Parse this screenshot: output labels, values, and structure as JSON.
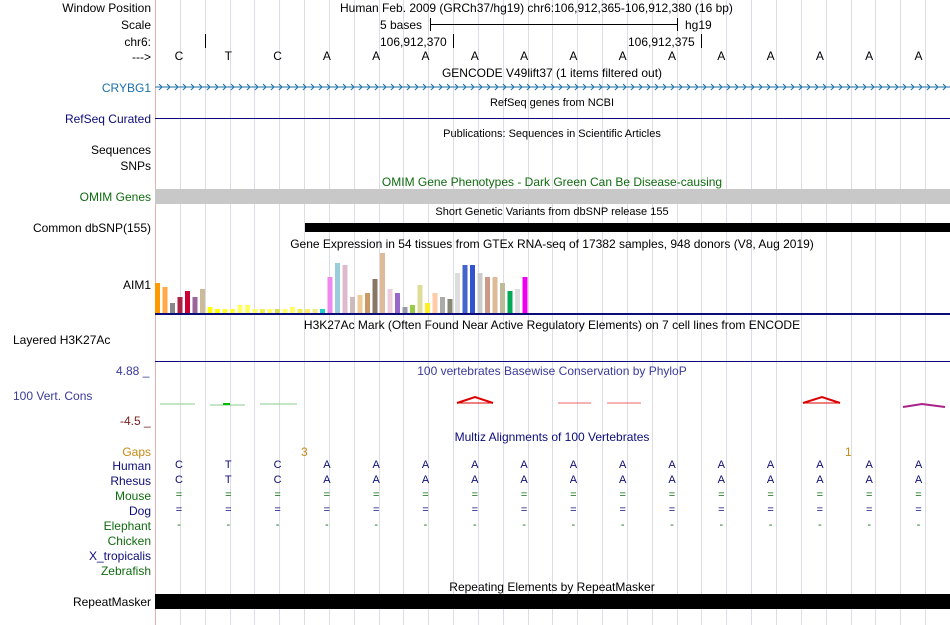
{
  "header": {
    "window_position_label": "Window Position",
    "scale_label": "Scale",
    "chrom_label": "chr6:",
    "arrow_label": "--->",
    "assembly_text": "Human Feb. 2009 (GRCh37/hg19)   chr6:106,912,365-106,912,380 (16 bp)",
    "scale_text": "5 bases",
    "scale_assembly": "hg19",
    "coord_1": "106,912,370",
    "coord_2": "106,912,375"
  },
  "sequence": [
    "C",
    "T",
    "C",
    "A",
    "A",
    "A",
    "A",
    "A",
    "A",
    "A",
    "A",
    "A",
    "A",
    "A",
    "A",
    "A"
  ],
  "tracks": {
    "gencode": {
      "title": "GENCODE V49lift37 (1 items filtered out)",
      "gene": "CRYBG1",
      "color": "#1a6fa8"
    },
    "refseq": {
      "title": "RefSeq genes from NCBI",
      "label": "RefSeq Curated",
      "color": "#0c0c78"
    },
    "publications": {
      "title": "Publications: Sequences in Scientific Articles",
      "label1": "Sequences",
      "label2": "SNPs"
    },
    "omim": {
      "title": "OMIM Gene Phenotypes - Dark Green Can Be Disease-causing",
      "label": "OMIM Genes",
      "color": "#0f6b0f"
    },
    "dbsnp": {
      "title": "Short Genetic Variants from dbSNP release 155",
      "label": "Common dbSNP(155)"
    },
    "gtex": {
      "title": "Gene Expression in 54 tissues from GTEx RNA-seq of 17382 samples, 948 donors (V8, Aug 2019)",
      "label": "AIM1"
    },
    "h3k27ac": {
      "title": "H3K27Ac Mark (Often Found Near Active Regulatory Elements) on 7 cell lines from ENCODE",
      "label": "Layered H3K27Ac"
    },
    "phylop": {
      "title": "100 vertebrates Basewise Conservation by PhyloP",
      "label": "100 Vert. Cons",
      "max": "4.88 _",
      "min": "-4.5 _",
      "color": "#3a3a9a"
    },
    "multiz": {
      "title": "Multiz Alignments of 100 Vertebrates",
      "gaps_label": "Gaps",
      "gap_num_1": "3",
      "gap_num_2": "1",
      "species": [
        {
          "name": "Human",
          "color": "#0c0c78"
        },
        {
          "name": "Rhesus",
          "color": "#0c0c78"
        },
        {
          "name": "Mouse",
          "color": "#0f6b0f"
        },
        {
          "name": "Dog",
          "color": "#0c0c78"
        },
        {
          "name": "Elephant",
          "color": "#0f6b0f"
        },
        {
          "name": "Chicken",
          "color": "#0f6b0f"
        },
        {
          "name": "X_tropicalis",
          "color": "#0c0c78"
        },
        {
          "name": "Zebrafish",
          "color": "#0f6b0f"
        }
      ],
      "human_seq": [
        "C",
        "T",
        "C",
        "A",
        "A",
        "A",
        "A",
        "A",
        "A",
        "A",
        "A",
        "A",
        "A",
        "A",
        "A",
        "A"
      ],
      "rhesus_seq": [
        "C",
        "T",
        "C",
        "A",
        "A",
        "A",
        "A",
        "A",
        "A",
        "A",
        "A",
        "A",
        "A",
        "A",
        "A",
        "A"
      ],
      "mouse_seq": [
        "=",
        "=",
        "=",
        "=",
        "=",
        "=",
        "=",
        "=",
        "=",
        "=",
        "=",
        "=",
        "=",
        "=",
        "=",
        "="
      ],
      "dog_seq": [
        "=",
        "=",
        "=",
        "=",
        "=",
        "=",
        "=",
        "=",
        "=",
        "=",
        "=",
        "=",
        "=",
        "=",
        "=",
        "="
      ],
      "elephant_seq": [
        "-",
        "-",
        "-",
        "-",
        "-",
        "-",
        "-",
        "-",
        "-",
        "-",
        "-",
        "-",
        "-",
        "-",
        "-",
        "-"
      ]
    },
    "repeatmasker": {
      "title": "Repeating Elements by RepeatMasker",
      "label": "RepeatMasker"
    }
  },
  "colors": {
    "gtex_bar_colors": [
      "#ff9900",
      "#ffaa44",
      "#888888",
      "#aa2244",
      "#cc0033",
      "#996699",
      "#ccbb99",
      "#ffff00",
      "#ffff00",
      "#ffff33",
      "#ffff33",
      "#ffff66",
      "#ffff66",
      "#ffff66",
      "#eeee55",
      "#ffff66",
      "#dddd55",
      "#ffff66",
      "#ffff66",
      "#eeee55",
      "#ffee66",
      "#eeee88",
      "#22cccc",
      "#ee88ee",
      "#99ccdd",
      "#ddbbcc",
      "#ccbbbb",
      "#eecc99",
      "#cc9966",
      "#887766",
      "#ddbb99",
      "#eeccdd",
      "#9966cc",
      "#9999aa",
      "#99cc44",
      "#dddd99",
      "#ffee22",
      "#ffccaa",
      "#aaaaaa",
      "#888877",
      "#dddddd",
      "#4466cc",
      "#3355cc",
      "#cccccc",
      "#cc9988",
      "#ddbb99",
      "#bbbb99",
      "#00aa55",
      "#dddddd",
      "#ee00ee"
    ]
  }
}
